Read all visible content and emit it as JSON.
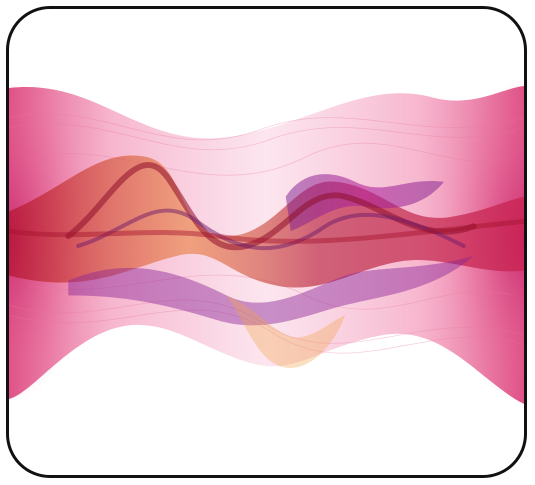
{
  "image": {
    "subject": "abstract-wave-ribbons",
    "colors": {
      "border": "#111111",
      "background": "#ffffff",
      "pink": "#e0407a",
      "magenta": "#b4239b",
      "purple": "#7a1f8e",
      "crimson": "#b3122f",
      "orange": "#e8782e",
      "light_pink": "#f6b6cf"
    }
  }
}
